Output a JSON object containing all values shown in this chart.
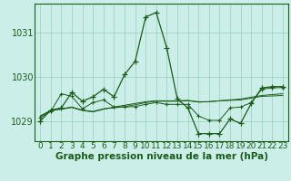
{
  "background_color": "#cceee8",
  "grid_color": "#99ccbb",
  "line_color": "#1a5c1a",
  "xlabel": "Graphe pression niveau de la mer (hPa)",
  "xlim": [
    -0.5,
    23.5
  ],
  "ylim": [
    1028.55,
    1031.65
  ],
  "yticks": [
    1029,
    1030,
    1031
  ],
  "xticks": [
    0,
    1,
    2,
    3,
    4,
    5,
    6,
    7,
    8,
    9,
    10,
    11,
    12,
    13,
    14,
    15,
    16,
    17,
    18,
    19,
    20,
    21,
    22,
    23
  ],
  "series": [
    [
      1029.0,
      1029.25,
      1029.3,
      1029.65,
      1029.45,
      1029.55,
      1029.72,
      1029.55,
      1030.05,
      1030.35,
      1031.35,
      1031.45,
      1030.65,
      1029.5,
      1029.3,
      1028.72,
      1028.72,
      1028.72,
      1029.05,
      1028.95,
      1029.4,
      1029.75,
      1029.78,
      1029.78
    ],
    [
      1029.1,
      1029.25,
      1029.28,
      1029.32,
      1029.25,
      1029.22,
      1029.28,
      1029.3,
      1029.33,
      1029.37,
      1029.42,
      1029.45,
      1029.45,
      1029.45,
      1029.46,
      1029.44,
      1029.44,
      1029.46,
      1029.47,
      1029.48,
      1029.52,
      1029.56,
      1029.57,
      1029.58
    ],
    [
      1029.12,
      1029.24,
      1029.27,
      1029.31,
      1029.24,
      1029.21,
      1029.27,
      1029.32,
      1029.36,
      1029.4,
      1029.44,
      1029.46,
      1029.46,
      1029.46,
      1029.47,
      1029.43,
      1029.44,
      1029.46,
      1029.48,
      1029.5,
      1029.54,
      1029.58,
      1029.6,
      1029.62
    ],
    [
      1029.08,
      1029.22,
      1029.62,
      1029.56,
      1029.28,
      1029.42,
      1029.48,
      1029.32,
      1029.32,
      1029.33,
      1029.38,
      1029.42,
      1029.38,
      1029.38,
      1029.38,
      1029.12,
      1029.02,
      1029.02,
      1029.3,
      1029.32,
      1029.42,
      1029.72,
      1029.75,
      1029.76
    ]
  ],
  "tick_fontsize": 6.5,
  "label_fontsize": 7.5
}
